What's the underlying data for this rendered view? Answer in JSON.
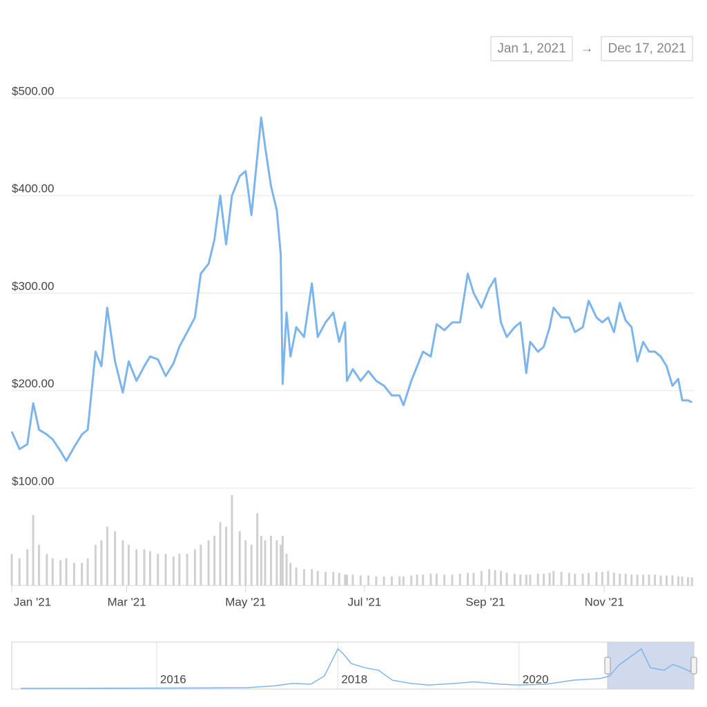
{
  "range": {
    "from": "Jan 1, 2021",
    "arrow": "→",
    "to": "Dec 17, 2021"
  },
  "chart_data": [
    {
      "type": "line",
      "color": "#7cb5ec",
      "x": [
        0,
        4,
        8,
        11,
        14,
        18,
        21,
        25,
        28,
        32,
        36,
        39,
        43,
        46,
        49,
        53,
        57,
        60,
        64,
        68,
        71,
        75,
        79,
        83,
        86,
        90,
        94,
        97,
        101,
        104,
        107,
        110,
        113,
        117,
        120,
        123,
        126,
        128,
        130,
        133,
        136,
        138,
        139,
        141,
        143,
        146,
        150,
        154,
        157,
        161,
        165,
        168,
        171,
        172,
        175,
        179,
        183,
        187,
        191,
        195,
        199,
        201,
        205,
        208,
        211,
        215,
        218,
        222,
        226,
        230,
        234,
        237,
        241,
        245,
        248,
        251,
        254,
        258,
        261,
        264,
        266,
        270,
        273,
        276,
        278,
        282,
        286,
        289,
        293,
        296,
        300,
        303,
        306,
        309,
        312,
        315,
        318,
        321,
        324,
        327,
        330,
        333,
        336,
        339,
        342,
        344,
        347,
        349
      ],
      "values": [
        158,
        140,
        145,
        187,
        160,
        155,
        150,
        138,
        128,
        142,
        155,
        160,
        240,
        225,
        285,
        230,
        198,
        230,
        210,
        225,
        235,
        232,
        215,
        228,
        245,
        260,
        275,
        320,
        330,
        355,
        400,
        350,
        400,
        420,
        425,
        380,
        440,
        480,
        450,
        410,
        385,
        340,
        207,
        280,
        235,
        265,
        255,
        310,
        255,
        270,
        280,
        250,
        270,
        210,
        222,
        210,
        220,
        210,
        205,
        195,
        195,
        185,
        210,
        225,
        240,
        235,
        268,
        262,
        270,
        270,
        320,
        300,
        285,
        305,
        315,
        270,
        255,
        265,
        270,
        218,
        250,
        240,
        245,
        265,
        285,
        275,
        275,
        260,
        265,
        292,
        275,
        270,
        275,
        260,
        290,
        272,
        265,
        230,
        250,
        240,
        240,
        235,
        225,
        205,
        212,
        190,
        190,
        188
      ],
      "xlim": [
        0,
        350
      ],
      "xticks": [
        {
          "value": 0,
          "label": "Jan '21"
        },
        {
          "value": 59,
          "label": "Mar '21"
        },
        {
          "value": 120,
          "label": "May '21"
        },
        {
          "value": 181,
          "label": "Jul '21"
        },
        {
          "value": 243,
          "label": "Sep '21"
        },
        {
          "value": 304,
          "label": "Nov '21"
        }
      ],
      "ylim": [
        100,
        500
      ],
      "yticks": [
        {
          "value": 100,
          "label": "$100.00"
        },
        {
          "value": 200,
          "label": "$200.00"
        },
        {
          "value": 300,
          "label": "$300.00"
        },
        {
          "value": 400,
          "label": "$400.00"
        },
        {
          "value": 500,
          "label": "$500.00"
        }
      ],
      "grid": true
    },
    {
      "type": "bar",
      "color": "#d0d0d0",
      "x": [
        0,
        4,
        8,
        11,
        14,
        18,
        21,
        25,
        28,
        32,
        36,
        39,
        43,
        46,
        49,
        53,
        57,
        60,
        64,
        68,
        71,
        75,
        79,
        83,
        86,
        90,
        94,
        97,
        101,
        104,
        107,
        110,
        113,
        117,
        120,
        123,
        126,
        128,
        130,
        133,
        136,
        138,
        139,
        141,
        143,
        146,
        150,
        154,
        157,
        161,
        165,
        168,
        171,
        172,
        175,
        179,
        183,
        187,
        191,
        195,
        199,
        201,
        205,
        208,
        211,
        215,
        218,
        222,
        226,
        230,
        234,
        237,
        241,
        245,
        248,
        251,
        254,
        258,
        261,
        264,
        266,
        270,
        273,
        276,
        278,
        282,
        286,
        289,
        293,
        296,
        300,
        303,
        306,
        309,
        312,
        315,
        318,
        321,
        324,
        327,
        330,
        333,
        336,
        339,
        342,
        344,
        347,
        349
      ],
      "values": [
        35,
        30,
        40,
        78,
        45,
        35,
        30,
        28,
        30,
        25,
        25,
        30,
        45,
        50,
        65,
        60,
        50,
        45,
        40,
        40,
        38,
        35,
        35,
        32,
        35,
        35,
        40,
        45,
        50,
        55,
        70,
        65,
        100,
        60,
        50,
        45,
        80,
        55,
        50,
        55,
        50,
        45,
        55,
        35,
        25,
        20,
        18,
        18,
        16,
        15,
        15,
        14,
        12,
        12,
        12,
        11,
        11,
        10,
        10,
        10,
        10,
        10,
        11,
        12,
        12,
        13,
        13,
        12,
        12,
        13,
        14,
        14,
        16,
        18,
        17,
        16,
        14,
        13,
        12,
        12,
        12,
        13,
        13,
        14,
        16,
        15,
        14,
        13,
        13,
        14,
        15,
        15,
        16,
        14,
        13,
        13,
        12,
        12,
        12,
        12,
        12,
        11,
        11,
        11,
        10,
        10,
        9,
        9
      ],
      "xlim": [
        0,
        350
      ],
      "ylim": [
        0,
        100
      ]
    },
    {
      "type": "area",
      "color": "#7cb5ec",
      "x": [
        2014.5,
        2015.5,
        2016.5,
        2017.0,
        2017.3,
        2017.5,
        2017.7,
        2017.85,
        2018.0,
        2018.05,
        2018.15,
        2018.3,
        2018.45,
        2018.6,
        2018.8,
        2019.0,
        2019.3,
        2019.5,
        2019.8,
        2020.0,
        2020.3,
        2020.6,
        2020.9,
        2021.0,
        2021.1,
        2021.35,
        2021.45,
        2021.6,
        2021.7,
        2021.8,
        2021.9,
        2021.93
      ],
      "values": [
        0,
        2,
        5,
        8,
        30,
        60,
        50,
        150,
        480,
        430,
        300,
        250,
        220,
        100,
        60,
        40,
        60,
        80,
        50,
        40,
        50,
        100,
        120,
        150,
        280,
        480,
        250,
        220,
        290,
        250,
        200,
        188
      ],
      "xlim": [
        2014.4,
        2021.93
      ],
      "ylim": [
        0,
        520
      ],
      "xticks": [
        2016,
        2018,
        2020
      ]
    }
  ]
}
